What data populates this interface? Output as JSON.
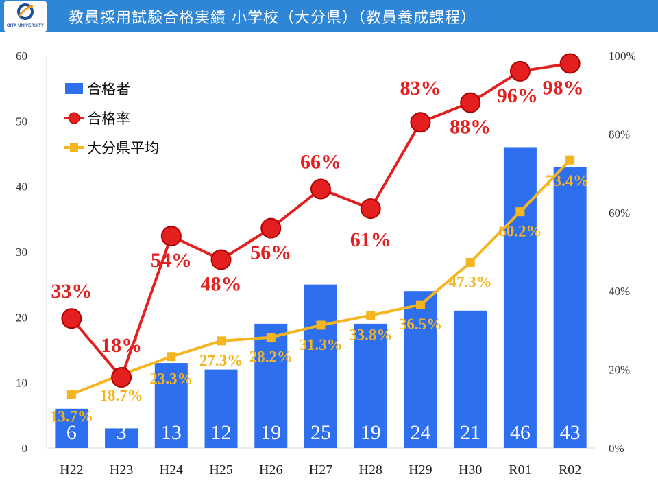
{
  "header": {
    "title": "教員採用試験合格実績  小学校（大分県）（教員養成課程）",
    "logo_text": "OITA UNIVERSITY"
  },
  "colors": {
    "header_bg": "#2f86d6",
    "bar": "#2e6ff0",
    "rate_line": "#e41f1f",
    "avg_line": "#f4b520"
  },
  "chart_data": {
    "type": "bar+line",
    "categories": [
      "H22",
      "H23",
      "H24",
      "H25",
      "H26",
      "H27",
      "H28",
      "H29",
      "H30",
      "R01",
      "R02"
    ],
    "left_axis": {
      "ylim": [
        0,
        60
      ],
      "ticks": [
        "0",
        "10",
        "20",
        "30",
        "40",
        "50",
        "60"
      ]
    },
    "right_axis": {
      "ylim": [
        0,
        100
      ],
      "ticks": [
        "0%",
        "20%",
        "40%",
        "60%",
        "80%",
        "100%"
      ]
    },
    "legend_position": "top-left",
    "grid": false,
    "series": [
      {
        "name": "合格者",
        "type": "bar",
        "axis": "left",
        "values": [
          6,
          3,
          13,
          12,
          19,
          25,
          19,
          24,
          21,
          46,
          43
        ],
        "labels": [
          "6",
          "3",
          "13",
          "12",
          "19",
          "25",
          "19",
          "24",
          "21",
          "46",
          "43"
        ]
      },
      {
        "name": "合格率",
        "type": "line",
        "axis": "right",
        "values": [
          33,
          18,
          54,
          48,
          56,
          66,
          61,
          83,
          88,
          96,
          98
        ],
        "labels": [
          "33%",
          "18%",
          "54%",
          "48%",
          "56%",
          "66%",
          "61%",
          "83%",
          "88%",
          "96%",
          "98%"
        ]
      },
      {
        "name": "大分県平均",
        "type": "line",
        "axis": "right",
        "values": [
          13.7,
          18.7,
          23.3,
          27.3,
          28.2,
          31.3,
          33.8,
          36.5,
          47.3,
          60.2,
          73.4
        ],
        "labels": [
          "13.7%",
          "18.7%",
          "23.3%",
          "27.3%",
          "28.2%",
          "31.3%",
          "33.8%",
          "36.5%",
          "47.3%",
          "60.2%",
          "73.4%"
        ]
      }
    ]
  }
}
